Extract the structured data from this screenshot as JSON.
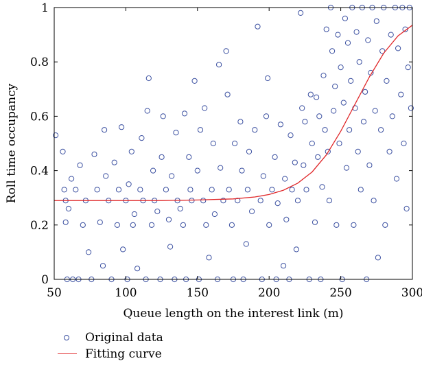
{
  "chart_data": {
    "type": "scatter",
    "title": "",
    "xlabel": "Queue length on the interest link (m)",
    "ylabel": "Roll time occupancy",
    "xlim": [
      50,
      300
    ],
    "ylim": [
      0,
      1
    ],
    "xticks": [
      50,
      100,
      150,
      200,
      250,
      300
    ],
    "yticks": [
      0,
      0.2,
      0.4,
      0.6,
      0.8,
      1
    ],
    "xtick_labels": [
      "50",
      "100",
      "150",
      "200",
      "250",
      "300"
    ],
    "ytick_labels": [
      "0",
      "0.2",
      "0.4",
      "0.6",
      "0.8",
      "1"
    ],
    "grid": false,
    "legend_position": "bottom-left below plot",
    "colors": {
      "points": "#3a4fa0",
      "curve": "#e0282a"
    },
    "series": [
      {
        "name": "Original data",
        "type": "scatter",
        "points": [
          [
            51,
            0.53
          ],
          [
            56,
            0.47
          ],
          [
            57,
            0.33
          ],
          [
            58,
            0.29
          ],
          [
            58,
            0.21
          ],
          [
            59,
            0.0
          ],
          [
            60,
            0.26
          ],
          [
            62,
            0.37
          ],
          [
            63,
            0.0
          ],
          [
            65,
            0.33
          ],
          [
            67,
            0.0
          ],
          [
            68,
            0.42
          ],
          [
            70,
            0.2
          ],
          [
            72,
            0.29
          ],
          [
            74,
            0.1
          ],
          [
            76,
            0.0
          ],
          [
            78,
            0.46
          ],
          [
            80,
            0.33
          ],
          [
            82,
            0.21
          ],
          [
            84,
            0.05
          ],
          [
            85,
            0.55
          ],
          [
            86,
            0.38
          ],
          [
            88,
            0.29
          ],
          [
            90,
            0.0
          ],
          [
            92,
            0.43
          ],
          [
            94,
            0.2
          ],
          [
            95,
            0.33
          ],
          [
            97,
            0.56
          ],
          [
            98,
            0.11
          ],
          [
            100,
            0.29
          ],
          [
            101,
            0.0
          ],
          [
            102,
            0.35
          ],
          [
            104,
            0.47
          ],
          [
            105,
            0.2
          ],
          [
            106,
            0.24
          ],
          [
            108,
            0.04
          ],
          [
            110,
            0.33
          ],
          [
            111,
            0.52
          ],
          [
            112,
            0.29
          ],
          [
            114,
            0.0
          ],
          [
            115,
            0.62
          ],
          [
            116,
            0.74
          ],
          [
            118,
            0.2
          ],
          [
            119,
            0.4
          ],
          [
            120,
            0.29
          ],
          [
            122,
            0.25
          ],
          [
            124,
            0.0
          ],
          [
            125,
            0.45
          ],
          [
            126,
            0.6
          ],
          [
            128,
            0.33
          ],
          [
            130,
            0.22
          ],
          [
            131,
            0.12
          ],
          [
            132,
            0.38
          ],
          [
            134,
            0.0
          ],
          [
            135,
            0.54
          ],
          [
            136,
            0.29
          ],
          [
            138,
            0.26
          ],
          [
            140,
            0.2
          ],
          [
            141,
            0.61
          ],
          [
            142,
            0.0
          ],
          [
            144,
            0.45
          ],
          [
            145,
            0.33
          ],
          [
            146,
            0.29
          ],
          [
            148,
            0.73
          ],
          [
            150,
            0.4
          ],
          [
            151,
            0.0
          ],
          [
            152,
            0.55
          ],
          [
            154,
            0.29
          ],
          [
            155,
            0.63
          ],
          [
            156,
            0.2
          ],
          [
            158,
            0.08
          ],
          [
            160,
            0.33
          ],
          [
            161,
            0.5
          ],
          [
            162,
            0.24
          ],
          [
            164,
            0.0
          ],
          [
            165,
            0.79
          ],
          [
            166,
            0.41
          ],
          [
            168,
            0.29
          ],
          [
            170,
            0.84
          ],
          [
            171,
            0.68
          ],
          [
            172,
            0.33
          ],
          [
            174,
            0.2
          ],
          [
            175,
            0.0
          ],
          [
            176,
            0.5
          ],
          [
            178,
            0.29
          ],
          [
            180,
            0.58
          ],
          [
            181,
            0.4
          ],
          [
            182,
            0.0
          ],
          [
            184,
            0.13
          ],
          [
            185,
            0.33
          ],
          [
            186,
            0.47
          ],
          [
            188,
            0.25
          ],
          [
            190,
            0.55
          ],
          [
            192,
            0.93
          ],
          [
            194,
            0.29
          ],
          [
            195,
            0.0
          ],
          [
            196,
            0.38
          ],
          [
            198,
            0.6
          ],
          [
            199,
            0.74
          ],
          [
            200,
            0.2
          ],
          [
            202,
            0.33
          ],
          [
            204,
            0.45
          ],
          [
            205,
            0.0
          ],
          [
            206,
            0.28
          ],
          [
            208,
            0.57
          ],
          [
            210,
            0.05
          ],
          [
            211,
            0.37
          ],
          [
            212,
            0.22
          ],
          [
            214,
            0.0
          ],
          [
            215,
            0.53
          ],
          [
            216,
            0.33
          ],
          [
            218,
            0.43
          ],
          [
            219,
            0.11
          ],
          [
            220,
            0.29
          ],
          [
            222,
            0.98
          ],
          [
            223,
            0.63
          ],
          [
            224,
            0.42
          ],
          [
            225,
            0.58
          ],
          [
            226,
            0.33
          ],
          [
            228,
            0.0
          ],
          [
            229,
            0.68
          ],
          [
            230,
            0.5
          ],
          [
            232,
            0.21
          ],
          [
            233,
            0.67
          ],
          [
            234,
            0.45
          ],
          [
            235,
            0.6
          ],
          [
            236,
            0.0
          ],
          [
            237,
            0.34
          ],
          [
            238,
            0.75
          ],
          [
            239,
            0.55
          ],
          [
            240,
            0.92
          ],
          [
            241,
            0.47
          ],
          [
            242,
            0.29
          ],
          [
            243,
            1.0
          ],
          [
            244,
            0.84
          ],
          [
            245,
            0.62
          ],
          [
            246,
            0.71
          ],
          [
            247,
            0.2
          ],
          [
            248,
            0.9
          ],
          [
            249,
            0.5
          ],
          [
            250,
            0.78
          ],
          [
            251,
            0.0
          ],
          [
            252,
            0.65
          ],
          [
            253,
            0.96
          ],
          [
            254,
            0.41
          ],
          [
            255,
            0.87
          ],
          [
            256,
            0.55
          ],
          [
            257,
            0.73
          ],
          [
            258,
            1.0
          ],
          [
            259,
            0.2
          ],
          [
            260,
            0.63
          ],
          [
            261,
            0.91
          ],
          [
            262,
            0.47
          ],
          [
            263,
            0.8
          ],
          [
            264,
            0.33
          ],
          [
            265,
            1.0
          ],
          [
            266,
            0.58
          ],
          [
            267,
            0.69
          ],
          [
            268,
            0.0
          ],
          [
            269,
            0.88
          ],
          [
            270,
            0.42
          ],
          [
            271,
            0.76
          ],
          [
            272,
            1.0
          ],
          [
            273,
            0.29
          ],
          [
            274,
            0.62
          ],
          [
            275,
            0.95
          ],
          [
            276,
            0.08
          ],
          [
            278,
            0.55
          ],
          [
            279,
            0.84
          ],
          [
            280,
            1.0
          ],
          [
            281,
            0.2
          ],
          [
            282,
            0.73
          ],
          [
            284,
            0.47
          ],
          [
            285,
            0.9
          ],
          [
            286,
            0.6
          ],
          [
            288,
            1.0
          ],
          [
            289,
            0.37
          ],
          [
            290,
            0.85
          ],
          [
            292,
            0.68
          ],
          [
            293,
            1.0
          ],
          [
            294,
            0.5
          ],
          [
            295,
            0.92
          ],
          [
            296,
            0.26
          ],
          [
            297,
            0.78
          ],
          [
            298,
            1.0
          ],
          [
            299,
            0.63
          ]
        ]
      },
      {
        "name": "Fitting curve",
        "type": "line",
        "x": [
          50,
          75,
          100,
          125,
          150,
          175,
          190,
          200,
          210,
          220,
          230,
          240,
          250,
          260,
          270,
          280,
          290,
          300
        ],
        "y": [
          0.29,
          0.29,
          0.29,
          0.29,
          0.292,
          0.296,
          0.303,
          0.312,
          0.328,
          0.354,
          0.395,
          0.458,
          0.545,
          0.645,
          0.745,
          0.832,
          0.896,
          0.935
        ]
      }
    ]
  }
}
